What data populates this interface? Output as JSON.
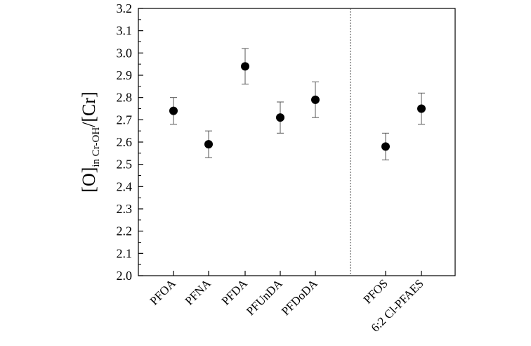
{
  "chart_data": {
    "type": "scatter",
    "ylabel": {
      "main_open": "[O]",
      "subscript": "in Cr-OH",
      "main_close": "/[Cr]"
    },
    "xlabel": "",
    "ylim": [
      2.0,
      3.2
    ],
    "yticks": [
      "2.0",
      "2.1",
      "2.2",
      "2.3",
      "2.4",
      "2.5",
      "2.6",
      "2.7",
      "2.8",
      "2.9",
      "3.0",
      "3.1",
      "3.2"
    ],
    "grid": false,
    "categories": [
      "PFOA",
      "PFNA",
      "PFDA",
      "PFUnDA",
      "PFDoDA",
      "PFOS",
      "6:2 Cl-PFAES"
    ],
    "groups": [
      {
        "categories": [
          "PFOA",
          "PFNA",
          "PFDA",
          "PFUnDA",
          "PFDoDA"
        ]
      },
      {
        "categories": [
          "PFOS",
          "6:2 Cl-PFAES"
        ]
      }
    ],
    "values": [
      2.74,
      2.59,
      2.94,
      2.71,
      2.79,
      2.58,
      2.75
    ],
    "error_low": [
      2.68,
      2.53,
      2.86,
      2.64,
      2.71,
      2.52,
      2.68
    ],
    "error_high": [
      2.8,
      2.65,
      3.02,
      2.78,
      2.87,
      2.64,
      2.82
    ],
    "colors": {
      "marker": "#000000",
      "error_bar": "#555555",
      "divider": "#444444"
    }
  }
}
